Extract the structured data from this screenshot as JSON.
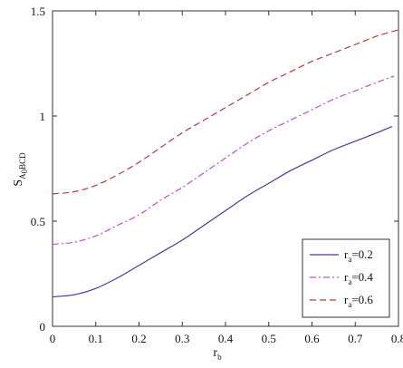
{
  "chart_data": {
    "type": "line",
    "xlabel": "r",
    "xlabel_sub": "b",
    "ylabel": "S",
    "ylabel_sub": "A",
    "ylabel_sub2": "0",
    "ylabel_sub3": "BCD",
    "xlim": [
      0,
      0.8
    ],
    "ylim": [
      0,
      1.5
    ],
    "xticks": [
      0,
      0.1,
      0.2,
      0.3,
      0.4,
      0.5,
      0.6,
      0.7,
      0.8
    ],
    "xtick_labels": [
      "0",
      "0.1",
      "0.2",
      "0.3",
      "0.4",
      "0.5",
      "0.6",
      "0.7",
      "0.8"
    ],
    "yticks": [
      0,
      0.5,
      1,
      1.5
    ],
    "ytick_labels": [
      "0",
      "0.5",
      "1",
      "1.5"
    ],
    "grid": false,
    "legend_position": "bottom-right",
    "series": [
      {
        "name": "r",
        "name_sub": "a",
        "name_value": "=0.2",
        "color": "#3f3f9e",
        "dash": "solid",
        "x": [
          0,
          0.05,
          0.1,
          0.15,
          0.2,
          0.25,
          0.3,
          0.35,
          0.4,
          0.45,
          0.5,
          0.55,
          0.6,
          0.65,
          0.7,
          0.75,
          0.785
        ],
        "y": [
          0.14,
          0.15,
          0.18,
          0.23,
          0.29,
          0.35,
          0.41,
          0.48,
          0.55,
          0.62,
          0.68,
          0.74,
          0.79,
          0.84,
          0.88,
          0.92,
          0.95
        ]
      },
      {
        "name": "r",
        "name_sub": "a",
        "name_value": "=0.4",
        "color": "#c64fc6",
        "dash": "dashdot",
        "x": [
          0,
          0.05,
          0.1,
          0.15,
          0.2,
          0.25,
          0.3,
          0.35,
          0.4,
          0.45,
          0.5,
          0.55,
          0.6,
          0.65,
          0.7,
          0.75,
          0.79
        ],
        "y": [
          0.39,
          0.4,
          0.43,
          0.48,
          0.53,
          0.6,
          0.66,
          0.73,
          0.8,
          0.87,
          0.93,
          0.98,
          1.03,
          1.08,
          1.12,
          1.16,
          1.19
        ]
      },
      {
        "name": "r",
        "name_sub": "a",
        "name_value": "=0.6",
        "color": "#b83c3c",
        "dash": "dashed",
        "x": [
          0,
          0.05,
          0.1,
          0.15,
          0.2,
          0.25,
          0.3,
          0.35,
          0.4,
          0.45,
          0.5,
          0.55,
          0.6,
          0.65,
          0.7,
          0.75,
          0.8
        ],
        "y": [
          0.63,
          0.64,
          0.67,
          0.72,
          0.78,
          0.85,
          0.92,
          0.98,
          1.04,
          1.1,
          1.16,
          1.21,
          1.26,
          1.3,
          1.34,
          1.38,
          1.41
        ]
      }
    ]
  }
}
